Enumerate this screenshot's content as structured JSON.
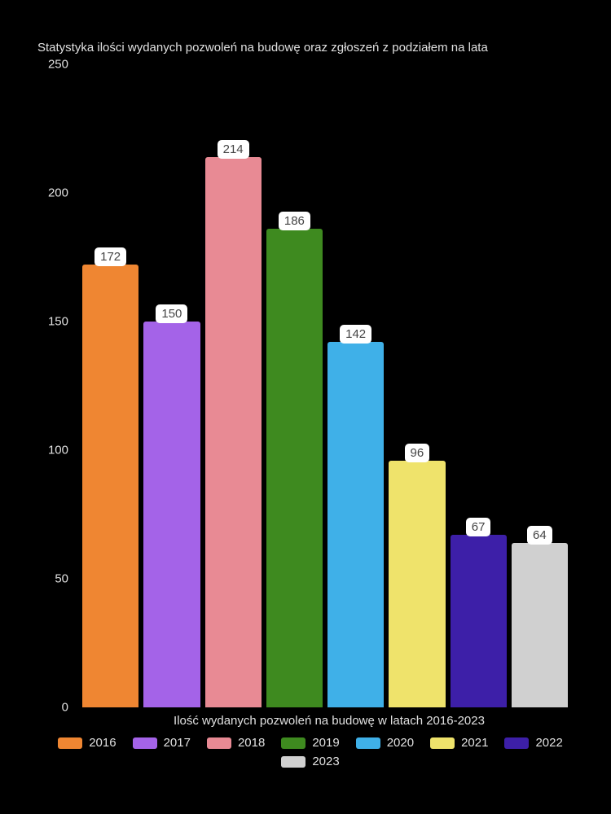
{
  "chart": {
    "type": "bar",
    "title": "Statystyka ilości wydanych pozwoleń na budowę oraz zgłoszeń z podziałem na lata",
    "x_axis_label": "Ilość wydanych pozwoleń na budowę w latach 2016-2023",
    "background_color": "#000000",
    "text_color": "#e0e0e0",
    "ylim": [
      0,
      250
    ],
    "ytick_step": 50,
    "yticks": [
      "0",
      "50",
      "100",
      "150",
      "200",
      "250"
    ],
    "title_fontsize": 15,
    "label_fontsize": 15,
    "bar_label_bg": "#ffffff",
    "bar_label_color": "#444444",
    "series": [
      {
        "year": "2016",
        "value": 172,
        "color": "#ef8632"
      },
      {
        "year": "2017",
        "value": 150,
        "color": "#a463e8"
      },
      {
        "year": "2018",
        "value": 214,
        "color": "#e88a94"
      },
      {
        "year": "2019",
        "value": 186,
        "color": "#3e8a1f"
      },
      {
        "year": "2020",
        "value": 142,
        "color": "#3fb0e8"
      },
      {
        "year": "2021",
        "value": 96,
        "color": "#efe36b"
      },
      {
        "year": "2022",
        "value": 67,
        "color": "#3d1fa8"
      },
      {
        "year": "2023",
        "value": 64,
        "color": "#d0d0d0"
      }
    ]
  }
}
